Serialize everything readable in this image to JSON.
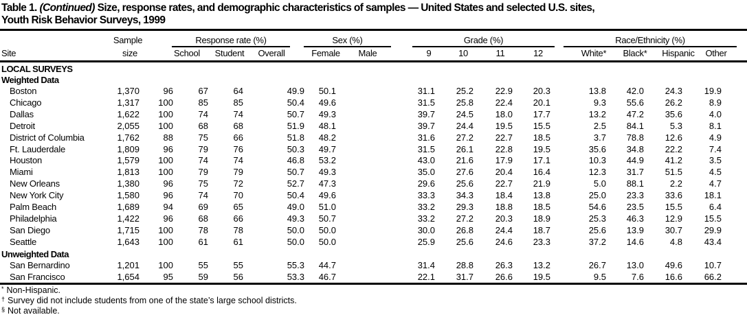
{
  "title": {
    "prefix": "Table 1.",
    "continued": "(Continued)",
    "line1": "Size, response rates, and demographic characteristics of samples — United States and selected U.S. sites,",
    "line2": "Youth Risk Behavior Surveys, 1999"
  },
  "headers": {
    "site": "Site",
    "sample_line1": "Sample",
    "sample_line2": "size",
    "groups": {
      "response_rate": "Response rate (%)",
      "sex": "Sex (%)",
      "grade": "Grade (%)",
      "race": "Race/Ethnicity (%)"
    },
    "columns": [
      "School",
      "Student",
      "Overall",
      "Female",
      "Male",
      "9",
      "10",
      "11",
      "12",
      "White*",
      "Black*",
      "Hispanic",
      "Other"
    ]
  },
  "sections": [
    {
      "label": "LOCAL SURVEYS"
    },
    {
      "label": "Weighted Data"
    },
    {
      "label": "Unweighted Data"
    }
  ],
  "weighted_rows": [
    {
      "site": "Boston",
      "values": [
        "1,370",
        "96",
        "67",
        "64",
        "49.9",
        "50.1",
        "31.1",
        "25.2",
        "22.9",
        "20.3",
        "13.8",
        "42.0",
        "24.3",
        "19.9"
      ]
    },
    {
      "site": "Chicago",
      "values": [
        "1,317",
        "100",
        "85",
        "85",
        "50.4",
        "49.6",
        "31.5",
        "25.8",
        "22.4",
        "20.1",
        "9.3",
        "55.6",
        "26.2",
        "8.9"
      ]
    },
    {
      "site": "Dallas",
      "values": [
        "1,622",
        "100",
        "74",
        "74",
        "50.7",
        "49.3",
        "39.7",
        "24.5",
        "18.0",
        "17.7",
        "13.2",
        "47.2",
        "35.6",
        "4.0"
      ]
    },
    {
      "site": "Detroit",
      "values": [
        "2,055",
        "100",
        "68",
        "68",
        "51.9",
        "48.1",
        "39.7",
        "24.4",
        "19.5",
        "15.5",
        "2.5",
        "84.1",
        "5.3",
        "8.1"
      ]
    },
    {
      "site": "District of Columbia",
      "values": [
        "1,762",
        "88",
        "75",
        "66",
        "51.8",
        "48.2",
        "31.6",
        "27.2",
        "22.7",
        "18.5",
        "3.7",
        "78.8",
        "12.6",
        "4.9"
      ]
    },
    {
      "site": "Ft. Lauderdale",
      "values": [
        "1,809",
        "96",
        "79",
        "76",
        "50.3",
        "49.7",
        "31.5",
        "26.1",
        "22.8",
        "19.5",
        "35.6",
        "34.8",
        "22.2",
        "7.4"
      ]
    },
    {
      "site": "Houston",
      "values": [
        "1,579",
        "100",
        "74",
        "74",
        "46.8",
        "53.2",
        "43.0",
        "21.6",
        "17.9",
        "17.1",
        "10.3",
        "44.9",
        "41.2",
        "3.5"
      ]
    },
    {
      "site": "Miami",
      "values": [
        "1,813",
        "100",
        "79",
        "79",
        "50.7",
        "49.3",
        "35.0",
        "27.6",
        "20.4",
        "16.4",
        "12.3",
        "31.7",
        "51.5",
        "4.5"
      ]
    },
    {
      "site": "New Orleans",
      "values": [
        "1,380",
        "96",
        "75",
        "72",
        "52.7",
        "47.3",
        "29.6",
        "25.6",
        "22.7",
        "21.9",
        "5.0",
        "88.1",
        "2.2",
        "4.7"
      ]
    },
    {
      "site": "New York City",
      "values": [
        "1,580",
        "96",
        "74",
        "70",
        "50.4",
        "49.6",
        "33.3",
        "34.3",
        "18.4",
        "13.8",
        "25.0",
        "23.3",
        "33.6",
        "18.1"
      ]
    },
    {
      "site": "Palm Beach",
      "values": [
        "1,689",
        "94",
        "69",
        "65",
        "49.0",
        "51.0",
        "33.2",
        "29.3",
        "18.8",
        "18.5",
        "54.6",
        "23.5",
        "15.5",
        "6.4"
      ]
    },
    {
      "site": "Philadelphia",
      "values": [
        "1,422",
        "96",
        "68",
        "66",
        "49.3",
        "50.7",
        "33.2",
        "27.2",
        "20.3",
        "18.9",
        "25.3",
        "46.3",
        "12.9",
        "15.5"
      ]
    },
    {
      "site": "San Diego",
      "values": [
        "1,715",
        "100",
        "78",
        "78",
        "50.0",
        "50.0",
        "30.0",
        "26.8",
        "24.4",
        "18.7",
        "25.6",
        "13.9",
        "30.7",
        "29.9"
      ]
    },
    {
      "site": "Seattle",
      "values": [
        "1,643",
        "100",
        "61",
        "61",
        "50.0",
        "50.0",
        "25.9",
        "25.6",
        "24.6",
        "23.3",
        "37.2",
        "14.6",
        "4.8",
        "43.4"
      ]
    }
  ],
  "unweighted_rows": [
    {
      "site": "San Bernardino",
      "values": [
        "1,201",
        "100",
        "55",
        "55",
        "55.3",
        "44.7",
        "31.4",
        "28.8",
        "26.3",
        "13.2",
        "26.7",
        "13.0",
        "49.6",
        "10.7"
      ]
    },
    {
      "site": "San Francisco",
      "values": [
        "1,654",
        "95",
        "59",
        "56",
        "53.3",
        "46.7",
        "22.1",
        "31.7",
        "26.6",
        "19.5",
        "9.5",
        "7.6",
        "16.6",
        "66.2"
      ]
    }
  ],
  "footnotes": [
    {
      "mark": "*",
      "text": "Non-Hispanic."
    },
    {
      "mark": "†",
      "text": "Survey did not include students from one of the state’s large school districts."
    },
    {
      "mark": "§",
      "text": "Not available."
    }
  ]
}
